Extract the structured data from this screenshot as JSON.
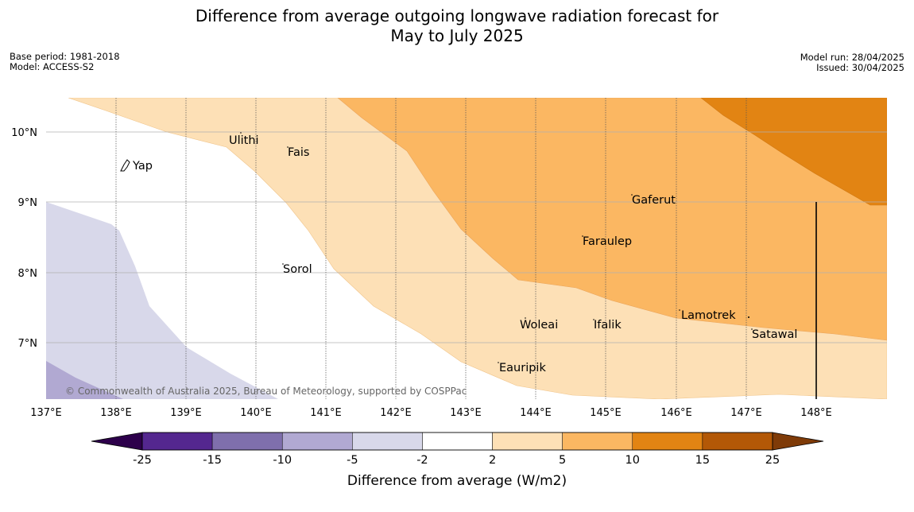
{
  "header": {
    "title_line1": "Difference from average outgoing longwave radiation forecast for",
    "title_line2": "May to July 2025"
  },
  "meta": {
    "base_period": "Base period: 1981-2018",
    "model": "Model: ACCESS-S2",
    "model_run": "Model run: 28/04/2025",
    "issued": "Issued: 30/04/2025"
  },
  "map": {
    "lon_labels": [
      "137°E",
      "138°E",
      "139°E",
      "140°E",
      "141°E",
      "142°E",
      "143°E",
      "144°E",
      "145°E",
      "146°E",
      "147°E",
      "148°E"
    ],
    "lat_labels": [
      "10°N",
      "9°N",
      "8°N",
      "7°N"
    ],
    "places": [
      "Yap",
      "Ulithi",
      "Fais",
      "Gaferut",
      "Faraulep",
      "Sorol",
      "Woleai",
      "Ifalik",
      "Lamotrek",
      "Satawal",
      "Eauripik"
    ],
    "copyright": "© Commonwealth of Australia 2025, Bureau of Meteorology, supported by COSPPac"
  },
  "colorbar": {
    "ticks": [
      "-25",
      "-15",
      "-10",
      "-5",
      "-2",
      "2",
      "5",
      "10",
      "15",
      "25"
    ],
    "colors": [
      "#54278f",
      "#7f6fac",
      "#b1a9d2",
      "#d8d8ea",
      "#ffffff",
      "#fde0b6",
      "#fbb762",
      "#e28413",
      "#b35806"
    ],
    "under_color": "#2d004b",
    "over_color": "#7f3b08",
    "title": "Difference from average (W/m2)"
  }
}
